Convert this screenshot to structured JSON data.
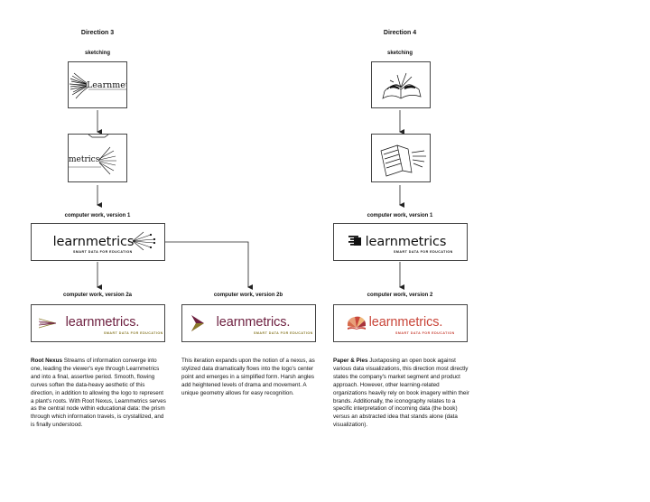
{
  "direction3": {
    "title": "Direction 3",
    "sketch_label": "sketching",
    "sketch1_text": "Learnmet",
    "sketch2_text": "metrics",
    "v1_label": "computer work, version 1",
    "v1_wordmark": "learnmetrics",
    "v1_tagline": "SMART DATA FOR EDUCATION",
    "v2a_label": "computer work, version 2a",
    "v2a_wordmark": "learnmetrics.",
    "v2a_tagline": "SMART DATA FOR EDUCATION",
    "v2b_label": "computer work, version 2b",
    "v2b_wordmark": "learnmetrics.",
    "v2b_tagline": "SMART DATA FOR EDUCATION",
    "desc_a_title": "Root Nexus",
    "desc_a_body": "Streams of information converge into one, leading the viewer's eye through Learnmetrics and into a final, assertive period. Smooth, flowing curves soften the data-heavy aesthetic of this direction, in addition to allowing the logo to represent a plant's roots. With Root Nexus, Learnmetrics serves as the central node within educational data: the prism through which information travels, is crystallized, and is finally understood.",
    "desc_b_body": "This iteration expands upon the notion of a nexus, as stylized data dramatically flows into the logo's center point and emerges in a simplified form. Harsh angles add heightened levels of drama and movement. A unique geometry allows for easy recognition."
  },
  "direction4": {
    "title": "Direction 4",
    "sketch_label": "sketching",
    "v1_label": "computer work, version 1",
    "v1_wordmark": "learnmetrics",
    "v1_tagline": "SMART DATA FOR EDUCATION",
    "v2_label": "computer work, version 2",
    "v2_wordmark": "learnmetrics.",
    "v2_tagline": "SMART DATA FOR EDUCATION",
    "desc_title": "Paper & Pies",
    "desc_body": "Juxtaposing an open book against various data visualizations, this direction most directly states the company's market segment and product approach. However, other learning-related organizations heavily rely on book imagery within their brands. Additionally, the iconography relates to a specific interpretation of incoming data (the book) versus an abstracted idea that stands alone (data visualization)."
  },
  "colors": {
    "maroon": "#6d1f3f",
    "olive": "#8a7a2a",
    "coral": "#c9463a",
    "black": "#111111"
  }
}
